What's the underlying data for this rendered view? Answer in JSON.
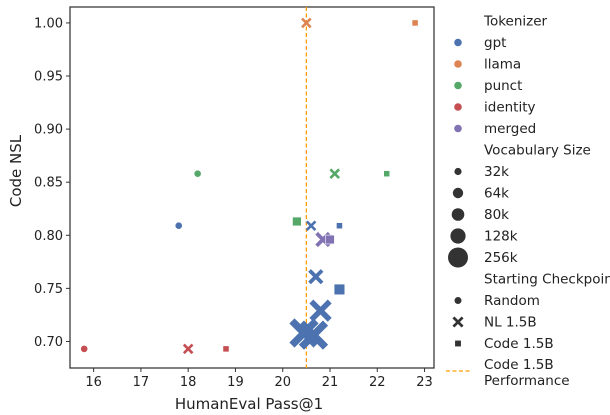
{
  "chart_data": {
    "type": "scatter",
    "title": "",
    "xlabel": "HumanEval Pass@1",
    "ylabel": "Code NSL",
    "xlim": [
      15.5,
      23.2
    ],
    "ylim": [
      0.675,
      1.015
    ],
    "xticks": [
      16,
      17,
      18,
      19,
      20,
      21,
      22,
      23
    ],
    "yticks": [
      0.7,
      0.75,
      0.8,
      0.85,
      0.9,
      0.95,
      1.0
    ],
    "ytick_labels": [
      "0.70",
      "0.75",
      "0.80",
      "0.85",
      "0.90",
      "0.95",
      "1.00"
    ],
    "grid": false,
    "legend_position": "outside right",
    "reference_line": {
      "x": 20.5,
      "label": "Code 1.5B\nPerformance",
      "color": "#ff9d00",
      "style": "dashed"
    },
    "colors": {
      "gpt": "#4c72b0",
      "llama": "#dd8452",
      "punct": "#55a868",
      "identity": "#c44e52",
      "merged": "#8172b3"
    },
    "legend": {
      "tokenizer_title": "Tokenizer",
      "tokenizers": [
        "gpt",
        "llama",
        "punct",
        "identity",
        "merged"
      ],
      "size_title": "Vocabulary Size",
      "sizes": [
        "32k",
        "64k",
        "80k",
        "128k",
        "256k"
      ],
      "checkpoint_title": "Starting Checkpoint",
      "checkpoints": [
        "Random",
        "NL 1.5B",
        "Code 1.5B"
      ],
      "line_label_1": "Code 1.5B",
      "line_label_2": "Performance"
    },
    "points": [
      {
        "x": 17.8,
        "y": 0.809,
        "tokenizer": "gpt",
        "checkpoint": "Random",
        "vocab": "32k"
      },
      {
        "x": 20.6,
        "y": 0.809,
        "tokenizer": "gpt",
        "checkpoint": "NL 1.5B",
        "vocab": "32k"
      },
      {
        "x": 21.2,
        "y": 0.809,
        "tokenizer": "gpt",
        "checkpoint": "Code 1.5B",
        "vocab": "32k"
      },
      {
        "x": 20.7,
        "y": 0.761,
        "tokenizer": "gpt",
        "checkpoint": "NL 1.5B",
        "vocab": "64k"
      },
      {
        "x": 21.2,
        "y": 0.749,
        "tokenizer": "gpt",
        "checkpoint": "Code 1.5B",
        "vocab": "80k"
      },
      {
        "x": 20.8,
        "y": 0.729,
        "tokenizer": "gpt",
        "checkpoint": "NL 1.5B",
        "vocab": "128k"
      },
      {
        "x": 20.45,
        "y": 0.708,
        "tokenizer": "gpt",
        "checkpoint": "NL 1.5B",
        "vocab": "256k"
      },
      {
        "x": 20.65,
        "y": 0.706,
        "tokenizer": "gpt",
        "checkpoint": "NL 1.5B",
        "vocab": "256k"
      },
      {
        "x": 20.5,
        "y": 1.0,
        "tokenizer": "llama",
        "checkpoint": "NL 1.5B",
        "vocab": "32k"
      },
      {
        "x": 22.8,
        "y": 1.0,
        "tokenizer": "llama",
        "checkpoint": "Code 1.5B",
        "vocab": "32k"
      },
      {
        "x": 18.2,
        "y": 0.858,
        "tokenizer": "punct",
        "checkpoint": "Random",
        "vocab": "32k"
      },
      {
        "x": 21.1,
        "y": 0.858,
        "tokenizer": "punct",
        "checkpoint": "NL 1.5B",
        "vocab": "32k"
      },
      {
        "x": 22.2,
        "y": 0.858,
        "tokenizer": "punct",
        "checkpoint": "Code 1.5B",
        "vocab": "32k"
      },
      {
        "x": 20.3,
        "y": 0.813,
        "tokenizer": "punct",
        "checkpoint": "Code 1.5B",
        "vocab": "64k"
      },
      {
        "x": 15.8,
        "y": 0.693,
        "tokenizer": "identity",
        "checkpoint": "Random",
        "vocab": "32k"
      },
      {
        "x": 18.0,
        "y": 0.693,
        "tokenizer": "identity",
        "checkpoint": "NL 1.5B",
        "vocab": "32k"
      },
      {
        "x": 18.8,
        "y": 0.693,
        "tokenizer": "identity",
        "checkpoint": "Code 1.5B",
        "vocab": "32k"
      },
      {
        "x": 20.85,
        "y": 0.796,
        "tokenizer": "merged",
        "checkpoint": "NL 1.5B",
        "vocab": "64k"
      },
      {
        "x": 21.0,
        "y": 0.796,
        "tokenizer": "merged",
        "checkpoint": "Code 1.5B",
        "vocab": "64k"
      }
    ]
  }
}
